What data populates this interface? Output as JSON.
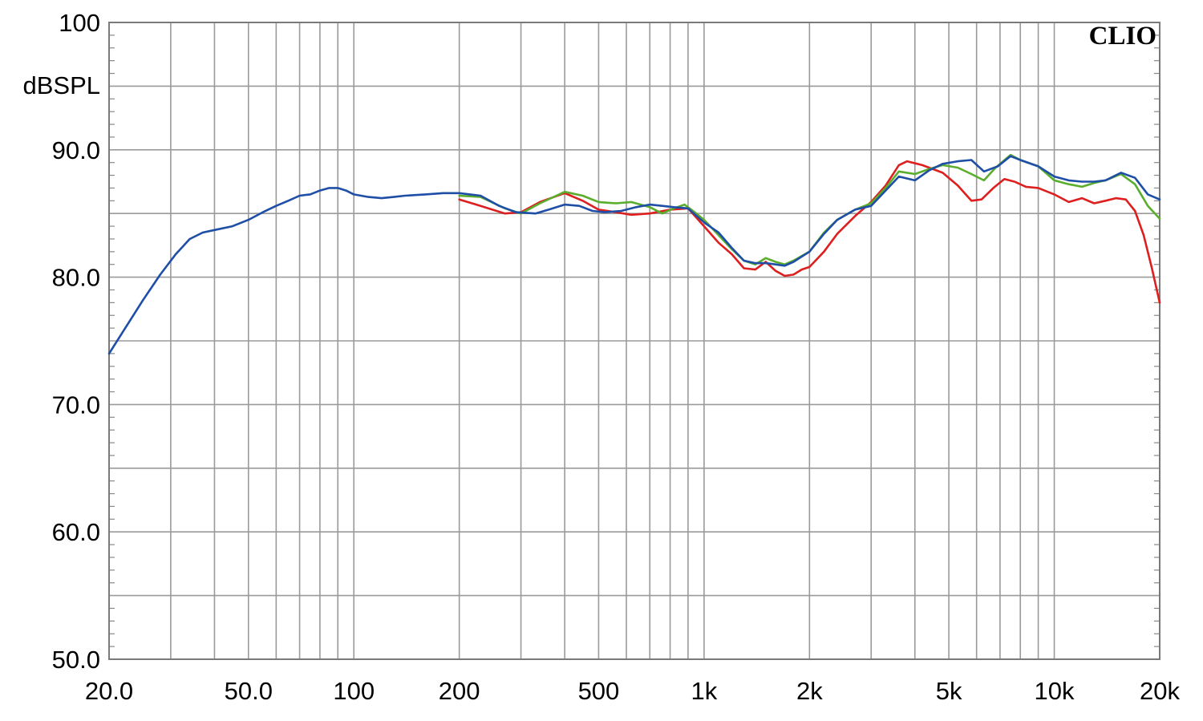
{
  "chart_data": {
    "type": "line",
    "title": "",
    "brand": "CLIO",
    "ylabel": "dBSPL",
    "xlabel": "",
    "x_scale": "log",
    "xlim": [
      20,
      20000
    ],
    "ylim": [
      50,
      100
    ],
    "grid": true,
    "y_ticks": [
      {
        "value": 100,
        "label": "100"
      },
      {
        "value": 90,
        "label": "90.0"
      },
      {
        "value": 80,
        "label": "80.0"
      },
      {
        "value": 70,
        "label": "70.0"
      },
      {
        "value": 60,
        "label": "60.0"
      },
      {
        "value": 50,
        "label": "50.0"
      }
    ],
    "y_grid": [
      95,
      90,
      85,
      80,
      75,
      70,
      65,
      60,
      55
    ],
    "x_ticks": [
      {
        "value": 20,
        "label": "20.0"
      },
      {
        "value": 50,
        "label": "50.0"
      },
      {
        "value": 100,
        "label": "100"
      },
      {
        "value": 200,
        "label": "200"
      },
      {
        "value": 500,
        "label": "500"
      },
      {
        "value": 1000,
        "label": "1k"
      },
      {
        "value": 2000,
        "label": "2k"
      },
      {
        "value": 5000,
        "label": "5k"
      },
      {
        "value": 10000,
        "label": "10k"
      },
      {
        "value": 20000,
        "label": "20k"
      }
    ],
    "x_grid": [
      30,
      40,
      50,
      60,
      70,
      80,
      90,
      100,
      200,
      300,
      400,
      500,
      600,
      700,
      800,
      900,
      1000,
      2000,
      3000,
      4000,
      5000,
      6000,
      7000,
      8000,
      9000,
      10000
    ],
    "series": [
      {
        "color": "#dd1f1f",
        "points": [
          [
            200,
            86.1
          ],
          [
            230,
            85.6
          ],
          [
            270,
            85.0
          ],
          [
            300,
            85.1
          ],
          [
            340,
            85.9
          ],
          [
            400,
            86.6
          ],
          [
            450,
            86.0
          ],
          [
            500,
            85.3
          ],
          [
            560,
            85.1
          ],
          [
            620,
            84.9
          ],
          [
            700,
            85.0
          ],
          [
            800,
            85.3
          ],
          [
            900,
            85.4
          ],
          [
            1000,
            84.0
          ],
          [
            1100,
            82.7
          ],
          [
            1200,
            81.8
          ],
          [
            1300,
            80.7
          ],
          [
            1400,
            80.6
          ],
          [
            1500,
            81.2
          ],
          [
            1600,
            80.5
          ],
          [
            1700,
            80.1
          ],
          [
            1800,
            80.2
          ],
          [
            1900,
            80.6
          ],
          [
            2000,
            80.8
          ],
          [
            2200,
            82.0
          ],
          [
            2400,
            83.4
          ],
          [
            2700,
            84.8
          ],
          [
            3000,
            85.9
          ],
          [
            3300,
            87.2
          ],
          [
            3600,
            88.8
          ],
          [
            3800,
            89.1
          ],
          [
            4200,
            88.8
          ],
          [
            4800,
            88.2
          ],
          [
            5300,
            87.2
          ],
          [
            5800,
            86.0
          ],
          [
            6200,
            86.1
          ],
          [
            6700,
            87.0
          ],
          [
            7200,
            87.7
          ],
          [
            7700,
            87.5
          ],
          [
            8300,
            87.1
          ],
          [
            9000,
            87.0
          ],
          [
            10000,
            86.5
          ],
          [
            11000,
            85.9
          ],
          [
            12000,
            86.2
          ],
          [
            13000,
            85.8
          ],
          [
            14000,
            86.0
          ],
          [
            15000,
            86.2
          ],
          [
            16000,
            86.1
          ],
          [
            17000,
            85.2
          ],
          [
            18000,
            83.3
          ],
          [
            19000,
            80.7
          ],
          [
            20000,
            78.0
          ]
        ]
      },
      {
        "color": "#5aad2d",
        "points": [
          [
            200,
            86.4
          ],
          [
            230,
            86.3
          ],
          [
            270,
            85.4
          ],
          [
            300,
            85.0
          ],
          [
            340,
            85.8
          ],
          [
            400,
            86.7
          ],
          [
            450,
            86.4
          ],
          [
            500,
            85.9
          ],
          [
            560,
            85.8
          ],
          [
            620,
            85.9
          ],
          [
            700,
            85.5
          ],
          [
            760,
            85.0
          ],
          [
            820,
            85.4
          ],
          [
            880,
            85.7
          ],
          [
            950,
            85.0
          ],
          [
            1000,
            84.5
          ],
          [
            1100,
            83.3
          ],
          [
            1200,
            82.2
          ],
          [
            1300,
            81.3
          ],
          [
            1400,
            81.0
          ],
          [
            1500,
            81.5
          ],
          [
            1600,
            81.2
          ],
          [
            1700,
            81.0
          ],
          [
            1800,
            81.3
          ],
          [
            2000,
            82.0
          ],
          [
            2200,
            83.5
          ],
          [
            2400,
            84.5
          ],
          [
            2700,
            85.3
          ],
          [
            3000,
            85.8
          ],
          [
            3300,
            87.0
          ],
          [
            3600,
            88.3
          ],
          [
            4000,
            88.1
          ],
          [
            4400,
            88.5
          ],
          [
            4800,
            88.8
          ],
          [
            5300,
            88.6
          ],
          [
            5800,
            88.1
          ],
          [
            6300,
            87.6
          ],
          [
            6800,
            88.6
          ],
          [
            7500,
            89.6
          ],
          [
            8000,
            89.2
          ],
          [
            9000,
            88.7
          ],
          [
            10000,
            87.6
          ],
          [
            11000,
            87.3
          ],
          [
            12000,
            87.1
          ],
          [
            13000,
            87.4
          ],
          [
            14000,
            87.6
          ],
          [
            15500,
            88.1
          ],
          [
            17000,
            87.3
          ],
          [
            18500,
            85.6
          ],
          [
            20000,
            84.6
          ]
        ]
      },
      {
        "color": "#1e4ea6",
        "points": [
          [
            20,
            74.0
          ],
          [
            22,
            75.8
          ],
          [
            25,
            78.2
          ],
          [
            28,
            80.2
          ],
          [
            31,
            81.8
          ],
          [
            34,
            83.0
          ],
          [
            37,
            83.5
          ],
          [
            40,
            83.7
          ],
          [
            45,
            84.0
          ],
          [
            50,
            84.5
          ],
          [
            55,
            85.1
          ],
          [
            60,
            85.6
          ],
          [
            65,
            86.0
          ],
          [
            70,
            86.4
          ],
          [
            75,
            86.5
          ],
          [
            80,
            86.8
          ],
          [
            85,
            87.0
          ],
          [
            90,
            87.0
          ],
          [
            95,
            86.8
          ],
          [
            100,
            86.5
          ],
          [
            110,
            86.3
          ],
          [
            120,
            86.2
          ],
          [
            130,
            86.3
          ],
          [
            140,
            86.4
          ],
          [
            160,
            86.5
          ],
          [
            180,
            86.6
          ],
          [
            200,
            86.6
          ],
          [
            230,
            86.4
          ],
          [
            260,
            85.6
          ],
          [
            290,
            85.1
          ],
          [
            330,
            85.0
          ],
          [
            360,
            85.3
          ],
          [
            400,
            85.7
          ],
          [
            440,
            85.6
          ],
          [
            480,
            85.2
          ],
          [
            520,
            85.1
          ],
          [
            580,
            85.2
          ],
          [
            640,
            85.5
          ],
          [
            700,
            85.7
          ],
          [
            760,
            85.6
          ],
          [
            820,
            85.5
          ],
          [
            900,
            85.4
          ],
          [
            1000,
            84.3
          ],
          [
            1100,
            83.5
          ],
          [
            1200,
            82.3
          ],
          [
            1300,
            81.3
          ],
          [
            1400,
            81.1
          ],
          [
            1500,
            81.1
          ],
          [
            1600,
            81.0
          ],
          [
            1700,
            80.9
          ],
          [
            1800,
            81.2
          ],
          [
            2000,
            82.0
          ],
          [
            2200,
            83.4
          ],
          [
            2400,
            84.5
          ],
          [
            2700,
            85.3
          ],
          [
            3000,
            85.6
          ],
          [
            3300,
            86.8
          ],
          [
            3600,
            87.9
          ],
          [
            4000,
            87.6
          ],
          [
            4400,
            88.4
          ],
          [
            4800,
            88.9
          ],
          [
            5300,
            89.1
          ],
          [
            5800,
            89.2
          ],
          [
            6300,
            88.3
          ],
          [
            6900,
            88.7
          ],
          [
            7500,
            89.5
          ],
          [
            8000,
            89.2
          ],
          [
            9000,
            88.7
          ],
          [
            10000,
            87.9
          ],
          [
            11000,
            87.6
          ],
          [
            12000,
            87.5
          ],
          [
            13000,
            87.5
          ],
          [
            14000,
            87.6
          ],
          [
            15500,
            88.2
          ],
          [
            17000,
            87.8
          ],
          [
            18500,
            86.5
          ],
          [
            20000,
            86.1
          ]
        ]
      }
    ]
  }
}
